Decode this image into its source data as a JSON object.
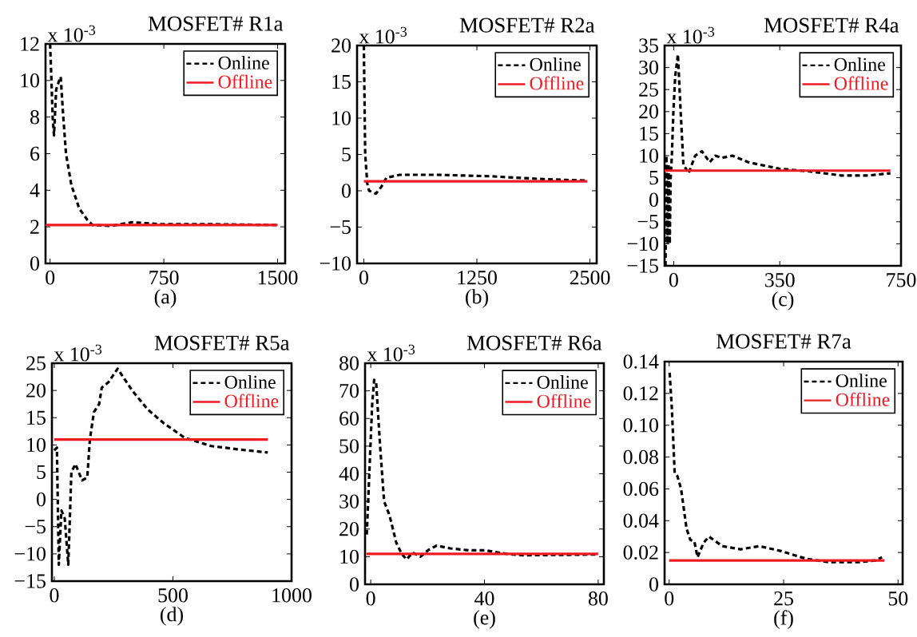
{
  "chart_data": [
    {
      "type": "line",
      "title": "MOSFET# R1a",
      "annotations": [
        "x 10$^{-3}$"
      ],
      "xlabel": "(a)",
      "xlim": [
        -30,
        1550
      ],
      "xticks": [
        0,
        750,
        1500
      ],
      "ylim": [
        0,
        12
      ],
      "yticks": [
        0,
        2,
        4,
        6,
        8,
        10,
        12
      ],
      "legend": "top right",
      "series": [
        {
          "name": "Online",
          "color": "#000000",
          "line_style": "dashed",
          "x": [
            0,
            9,
            17,
            26,
            40,
            60,
            70,
            87,
            105,
            140,
            192,
            244,
            279,
            400,
            541,
            715,
            1000,
            1500
          ],
          "values": [
            12,
            10,
            8,
            7,
            9.5,
            10,
            10.2,
            8,
            6,
            4.3,
            3,
            2.4,
            2.1,
            2.05,
            2.25,
            2.15,
            2.15,
            2.1
          ]
        },
        {
          "name": "Offline",
          "color": "#ed1c24",
          "line_style": "solid",
          "x": [
            -30,
            1500
          ],
          "values": [
            2.1,
            2.1
          ]
        }
      ]
    },
    {
      "type": "line",
      "title": "MOSFET# R2a",
      "annotations": [
        "x 10$^{-3}$"
      ],
      "xlabel": "(b)",
      "xlim": [
        -75,
        2575
      ],
      "xticks": [
        0,
        1250,
        2500
      ],
      "ylim": [
        -10,
        20
      ],
      "yticks": [
        {
          "value": -10,
          "label": "−10"
        },
        {
          "value": -5,
          "label": "−5"
        },
        0,
        5,
        10,
        15,
        20
      ],
      "legend": "top right",
      "series": [
        {
          "name": "Online",
          "color": "#000000",
          "line_style": "dashed",
          "x": [
            0,
            15,
            38,
            59,
            132,
            191,
            250,
            397,
            809,
            1397,
            1985,
            2471
          ],
          "values": [
            20,
            5,
            1,
            0,
            -0.4,
            0.5,
            1.8,
            2.2,
            2.2,
            2.0,
            1.6,
            1.4
          ]
        },
        {
          "name": "Offline",
          "color": "#ed1c24",
          "line_style": "solid",
          "x": [
            0,
            2471
          ],
          "values": [
            1.3,
            1.3
          ]
        }
      ]
    },
    {
      "type": "line",
      "title": "MOSFET# R4a",
      "annotations": [
        "x 10$^{-3}$"
      ],
      "xlabel": "(c)",
      "xlim": [
        -30,
        750
      ],
      "xticks": [
        0,
        350,
        750
      ],
      "ylim": [
        -15,
        35
      ],
      "yticks": [
        {
          "value": -15,
          "label": "−15"
        },
        {
          "value": -10,
          "label": "−10"
        },
        {
          "value": -5,
          "label": "−5"
        },
        0,
        5,
        10,
        15,
        20,
        25,
        30,
        35
      ],
      "legend": "top right",
      "series": [
        {
          "name": "Online",
          "color": "#000000",
          "line_style": "dashed",
          "x": [
            -27,
            -24,
            -20,
            -17,
            -13,
            -10,
            -6,
            -1,
            5,
            14,
            23,
            32,
            49,
            71,
            93,
            119,
            137,
            159,
            194,
            246,
            351,
            439,
            553,
            641,
            715
          ],
          "values": [
            -15,
            10,
            -10,
            8,
            -10,
            5,
            10,
            20,
            28,
            33,
            20,
            8,
            6,
            10,
            11,
            8.5,
            10,
            9.5,
            10,
            8.5,
            7,
            6.5,
            5.5,
            5.5,
            6
          ]
        },
        {
          "name": "Offline",
          "color": "#ed1c24",
          "line_style": "solid",
          "x": [
            -30,
            715
          ],
          "values": [
            6.6,
            6.6
          ]
        }
      ]
    },
    {
      "type": "line",
      "title": "MOSFET# R5a",
      "annotations": [
        "x 10$^{-3}$"
      ],
      "xlabel": "(d)",
      "xlim": [
        -10,
        1000
      ],
      "xticks": [
        0,
        500,
        1000
      ],
      "ylim": [
        -15,
        25
      ],
      "yticks": [
        {
          "value": -15,
          "label": "−15"
        },
        {
          "value": -10,
          "label": "−10"
        },
        {
          "value": -5,
          "label": "−5"
        },
        0,
        5,
        10,
        15,
        20,
        25
      ],
      "legend": "top right",
      "series": [
        {
          "name": "Online",
          "color": "#000000",
          "line_style": "dashed",
          "x": [
            0,
            11,
            19,
            30,
            44,
            59,
            72,
            89,
            117,
            139,
            150,
            167,
            189,
            200,
            228,
            267,
            328,
            394,
            461,
            550,
            661,
            772,
            900
          ],
          "values": [
            9,
            9.5,
            -12,
            -2,
            -3.5,
            -12,
            5,
            6.5,
            3.5,
            4,
            11,
            16,
            17.5,
            20.5,
            21.5,
            24,
            20,
            16.5,
            14,
            11.3,
            9.8,
            9.2,
            8.6
          ]
        },
        {
          "name": "Offline",
          "color": "#ed1c24",
          "line_style": "solid",
          "x": [
            0,
            900
          ],
          "values": [
            11,
            11
          ]
        }
      ]
    },
    {
      "type": "line",
      "title": "MOSFET# R6a",
      "annotations": [
        "x 10$^{-3}$"
      ],
      "xlabel": "(e)",
      "xlim": [
        -2,
        82
      ],
      "xticks": [
        0,
        40,
        80
      ],
      "ylim": [
        0,
        80
      ],
      "yticks": [
        0,
        10,
        20,
        30,
        40,
        50,
        60,
        70,
        80
      ],
      "legend": "top right",
      "series": [
        {
          "name": "Online",
          "color": "#000000",
          "line_style": "dashed",
          "x": [
            -1.4,
            -0.5,
            0.5,
            1.2,
            1.9,
            3.3,
            4.7,
            6.6,
            9,
            10.9,
            12.6,
            14.7,
            17.5,
            20.4,
            23.2,
            28,
            34.6,
            40.3,
            47.9,
            53.5,
            80
          ],
          "values": [
            18,
            40,
            65,
            74,
            73,
            50,
            30,
            25,
            15,
            11,
            9,
            11.5,
            10,
            12.5,
            14,
            13,
            12.3,
            12.3,
            11,
            10.5,
            10.8
          ]
        },
        {
          "name": "Offline",
          "color": "#ed1c24",
          "line_style": "solid",
          "x": [
            -1.5,
            80
          ],
          "values": [
            11,
            11
          ]
        }
      ]
    },
    {
      "type": "line",
      "title": "MOSFET# R7a",
      "xlabel": "(f)",
      "xlim": [
        -1,
        51
      ],
      "xticks": [
        0,
        25,
        50
      ],
      "ylim": [
        0,
        0.14
      ],
      "yticks": [
        0,
        0.02,
        0.04,
        0.06,
        0.08,
        {
          "value": 0.1,
          "label": "0.10"
        },
        0.12,
        0.14
      ],
      "legend": "top right",
      "series": [
        {
          "name": "Online",
          "color": "#000000",
          "line_style": "dashed",
          "x": [
            0.1,
            0.6,
            1.2,
            1.8,
            2.6,
            3.8,
            4.6,
            5.5,
            6.2,
            7.5,
            8.7,
            11.6,
            15.6,
            19.7,
            24.3,
            30,
            34.7,
            41.6,
            45.1,
            46.5
          ],
          "values": [
            0.133,
            0.11,
            0.07,
            0.068,
            0.06,
            0.035,
            0.028,
            0.027,
            0.017,
            0.026,
            0.03,
            0.024,
            0.022,
            0.024,
            0.021,
            0.016,
            0.014,
            0.014,
            0.015,
            0.017
          ]
        },
        {
          "name": "Offline",
          "color": "#ed1c24",
          "line_style": "solid",
          "x": [
            0,
            47
          ],
          "values": [
            0.015,
            0.015
          ]
        }
      ]
    }
  ]
}
